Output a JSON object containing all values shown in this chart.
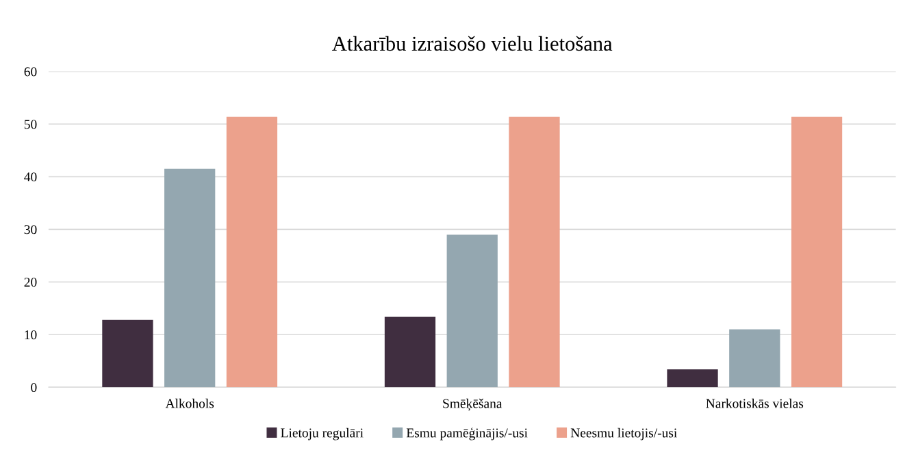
{
  "chart_data": {
    "type": "bar",
    "title": "Atkarību izraisošo vielu lietošana",
    "categories": [
      "Alkohols",
      "Smēķēšana",
      "Narkotiskās vielas"
    ],
    "series": [
      {
        "name": "Lietoju regulāri",
        "color": "#402e40",
        "values": [
          12.8,
          13.4,
          3.4
        ]
      },
      {
        "name": "Esmu pamēģinājis/-usi",
        "color": "#94a7b0",
        "values": [
          41.5,
          29.0,
          11.0
        ]
      },
      {
        "name": "Neesmu lietojis/-usi",
        "color": "#eca18c",
        "values": [
          51.4,
          51.4,
          51.4
        ]
      }
    ],
    "ylim": [
      0,
      60
    ],
    "yticks": [
      0,
      10,
      20,
      30,
      40,
      50,
      60
    ],
    "grid": "y",
    "legend": "bottom"
  }
}
